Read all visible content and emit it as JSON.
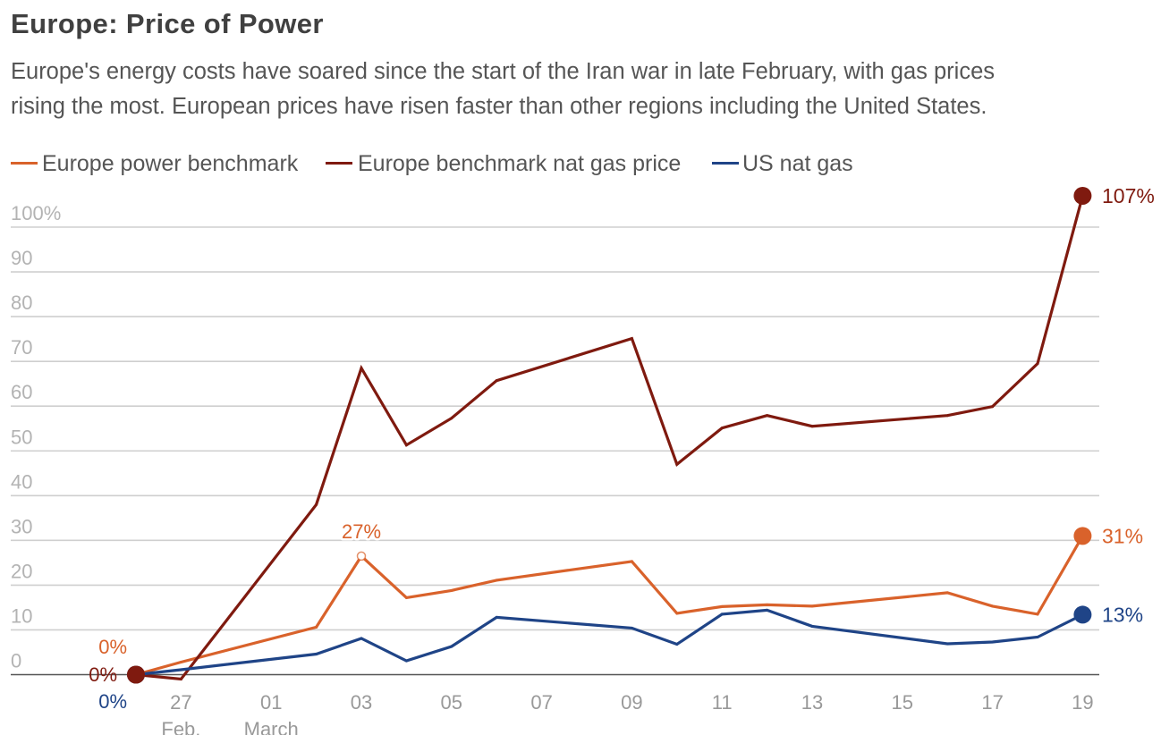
{
  "chart_data": {
    "type": "line",
    "title": "Europe: Price of Power",
    "subtitle_lines": [
      "Europe's energy costs have soared since the start of the Iran war in late February, with gas prices",
      "rising the most. European prices have risen faster than other regions including the United States."
    ],
    "xlabel": "",
    "ylabel": "",
    "y_unit": "%",
    "ylim": [
      0,
      100
    ],
    "grid": true,
    "legend_position": "top-left",
    "x": [
      "26 Feb",
      "27 Feb",
      "02 Mar",
      "03 Mar",
      "04 Mar",
      "05 Mar",
      "06 Mar",
      "09 Mar",
      "10 Mar",
      "11 Mar",
      "12 Mar",
      "13 Mar",
      "16 Mar",
      "17 Mar",
      "18 Mar",
      "19 Mar"
    ],
    "x_ticks": [
      {
        "date": "27 Feb",
        "label": "27",
        "sublabel": "Feb."
      },
      {
        "date": "01 Mar",
        "label": "01",
        "sublabel": "March"
      },
      {
        "date": "03 Mar",
        "label": "03"
      },
      {
        "date": "05 Mar",
        "label": "05"
      },
      {
        "date": "07 Mar",
        "label": "07"
      },
      {
        "date": "09 Mar",
        "label": "09"
      },
      {
        "date": "11 Mar",
        "label": "11"
      },
      {
        "date": "13 Mar",
        "label": "13"
      },
      {
        "date": "15 Mar",
        "label": "15"
      },
      {
        "date": "17 Mar",
        "label": "17"
      },
      {
        "date": "19 Mar",
        "label": "19"
      }
    ],
    "y_ticks": [
      {
        "value": 0,
        "label": "0"
      },
      {
        "value": 10,
        "label": "10"
      },
      {
        "value": 20,
        "label": "20"
      },
      {
        "value": 30,
        "label": "30"
      },
      {
        "value": 40,
        "label": "40"
      },
      {
        "value": 50,
        "label": "50"
      },
      {
        "value": 60,
        "label": "60"
      },
      {
        "value": 70,
        "label": "70"
      },
      {
        "value": 80,
        "label": "80"
      },
      {
        "value": 90,
        "label": "90"
      },
      {
        "value": 100,
        "label": "100%"
      }
    ],
    "series": [
      {
        "name": "Europe power benchmark",
        "color": "#D9622B",
        "values": [
          0,
          2.8,
          10.6,
          26.5,
          17.2,
          18.8,
          21.1,
          25.3,
          13.7,
          15.2,
          15.6,
          15.3,
          18.3,
          15.3,
          13.5,
          31
        ],
        "start_label": "0%",
        "end_label": "31%",
        "annotations": [
          {
            "date": "03 Mar",
            "value": 26.5,
            "label": "27%"
          }
        ]
      },
      {
        "name": "Europe benchmark nat gas price",
        "color": "#7F1A0F",
        "values": [
          0,
          -1,
          38,
          68.5,
          51.3,
          57.3,
          65.7,
          75.1,
          47,
          55.1,
          57.9,
          55.5,
          57.9,
          59.9,
          69.5,
          107
        ],
        "start_label": "0%",
        "end_label": "107%",
        "annotations": []
      },
      {
        "name": "US nat gas",
        "color": "#1F4487",
        "values": [
          0,
          1.1,
          4.6,
          8.1,
          3.1,
          6.3,
          12.8,
          10.4,
          6.8,
          13.5,
          14.4,
          10.8,
          6.9,
          7.3,
          8.4,
          13.4
        ],
        "start_label": "0%",
        "end_label": "13%",
        "annotations": []
      }
    ]
  }
}
